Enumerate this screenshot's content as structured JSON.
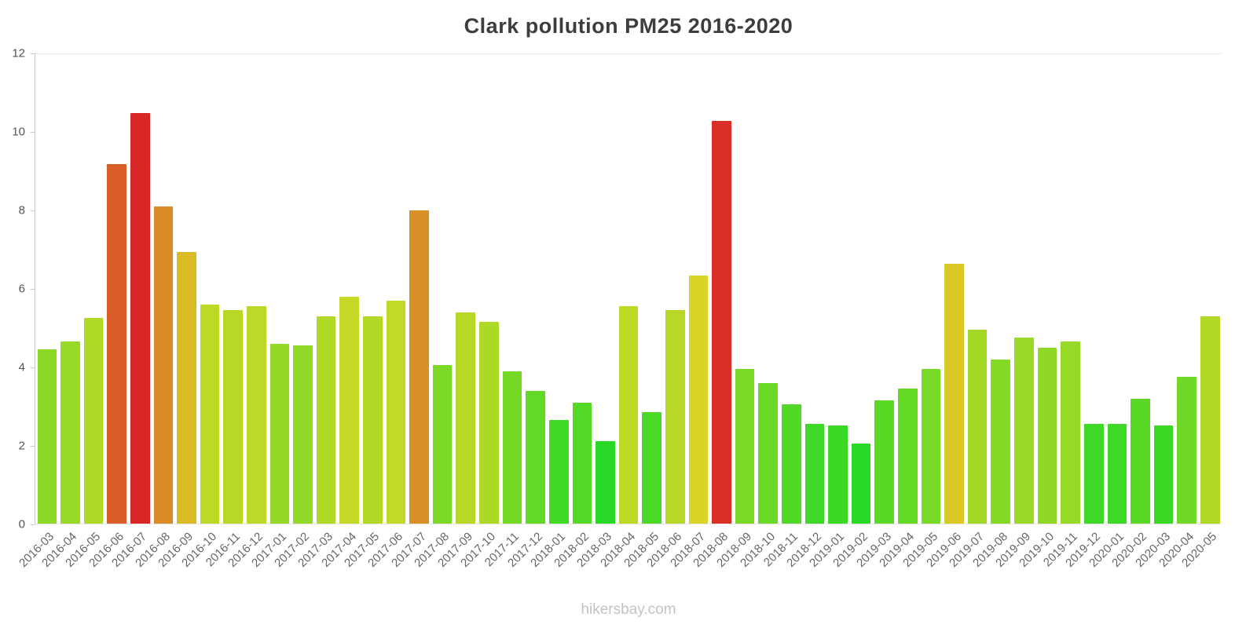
{
  "title": "Clark pollution PM25 2016-2020",
  "watermark": "hikersbay.com",
  "chart_data": {
    "type": "bar",
    "title": "Clark pollution PM25 2016-2020",
    "xlabel": "",
    "ylabel": "",
    "ylim": [
      0,
      12
    ],
    "y_ticks": [
      0,
      2,
      4,
      6,
      8,
      10,
      12
    ],
    "grid": "none",
    "legend": "none",
    "categories": [
      "2016-03",
      "2016-04",
      "2016-05",
      "2016-06",
      "2016-07",
      "2016-08",
      "2016-09",
      "2016-10",
      "2016-11",
      "2016-12",
      "2017-01",
      "2017-02",
      "2017-03",
      "2017-04",
      "2017-05",
      "2017-06",
      "2017-07",
      "2017-08",
      "2017-09",
      "2017-10",
      "2017-11",
      "2017-12",
      "2018-01",
      "2018-02",
      "2018-03",
      "2018-04",
      "2018-05",
      "2018-06",
      "2018-07",
      "2018-08",
      "2018-09",
      "2018-10",
      "2018-11",
      "2018-12",
      "2019-01",
      "2019-02",
      "2019-03",
      "2019-04",
      "2019-05",
      "2019-06",
      "2019-07",
      "2019-08",
      "2019-09",
      "2019-10",
      "2019-11",
      "2019-12",
      "2020-01",
      "2020-02",
      "2020-03",
      "2020-04",
      "2020-05"
    ],
    "values": [
      4.45,
      4.65,
      5.25,
      9.2,
      10.5,
      8.1,
      6.95,
      5.6,
      5.45,
      5.55,
      4.6,
      4.55,
      5.3,
      5.8,
      5.3,
      5.7,
      8.0,
      4.05,
      5.4,
      5.15,
      3.9,
      3.4,
      2.65,
      3.1,
      2.1,
      5.55,
      2.85,
      5.45,
      6.35,
      10.3,
      3.95,
      3.6,
      3.05,
      2.55,
      2.5,
      2.05,
      3.15,
      3.45,
      3.95,
      6.65,
      4.95,
      4.2,
      4.75,
      4.5,
      4.65,
      2.55,
      2.55,
      3.2,
      2.5,
      3.75,
      5.3
    ],
    "color_scale": {
      "description": "green-to-red by value",
      "value_low": 2.0,
      "value_high": 10.5,
      "hue_low": 120,
      "hue_high": 0,
      "saturation": 70,
      "lightness": 50,
      "low_color": "#26D926",
      "mid_color": "#D9D926",
      "high_color": "#D92626"
    }
  }
}
